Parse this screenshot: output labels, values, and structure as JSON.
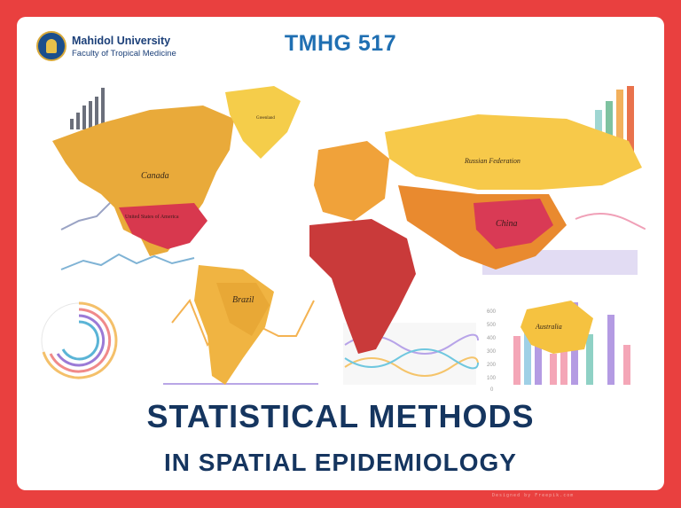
{
  "header": {
    "university": "Mahidol University",
    "faculty": "Faculty of Tropical Medicine",
    "course_code": "TMHG 517"
  },
  "title": {
    "line1": "STATISTICAL METHODS",
    "line2": "IN SPATIAL EPIDEMIOLOGY"
  },
  "map_labels": {
    "canada": "Canada",
    "usa": "United States of America",
    "brazil": "Brazil",
    "russia": "Russian Federation",
    "china": "China",
    "australia": "Australia",
    "greenland": "Greenland"
  },
  "chart_axis": {
    "y_ticks": [
      "600",
      "500",
      "400",
      "300",
      "200",
      "100",
      "0"
    ]
  },
  "credit": "Designed by Freepik.com",
  "colors": {
    "frame": "#e9403f",
    "title": "#15355f",
    "course": "#1f6fb2"
  }
}
